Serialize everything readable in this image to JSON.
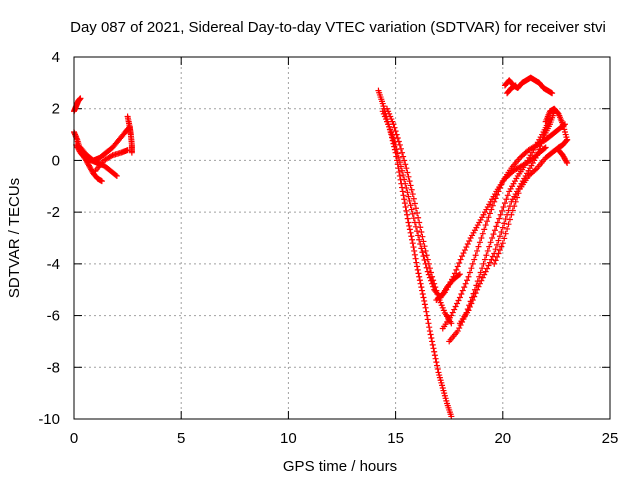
{
  "chart_data": {
    "type": "scatter",
    "title": "Day 087 of 2021, Sidereal Day-to-day VTEC variation (SDTVAR) for receiver stvi",
    "xlabel": "GPS time / hours",
    "ylabel": "SDTVAR / TECUs",
    "xlim": [
      0,
      25
    ],
    "ylim": [
      -10,
      4
    ],
    "xticks": [
      0,
      5,
      10,
      15,
      20,
      25
    ],
    "yticks": [
      -10,
      -8,
      -6,
      -4,
      -2,
      0,
      2,
      4
    ],
    "grid": true,
    "legend": "none",
    "marker": "+",
    "color": "#ff0000",
    "tracks": [
      {
        "x": [
          0.0,
          0.1,
          0.2,
          0.3
        ],
        "y": [
          1.9,
          2.1,
          2.3,
          2.4
        ]
      },
      {
        "x": [
          0.0,
          0.15,
          0.3,
          0.5,
          0.7,
          0.9,
          1.1,
          1.3
        ],
        "y": [
          1.1,
          0.8,
          0.4,
          0.1,
          -0.2,
          -0.5,
          -0.7,
          -0.8
        ]
      },
      {
        "x": [
          0.1,
          0.3,
          0.5,
          0.8,
          1.1,
          1.4,
          1.7,
          2.0
        ],
        "y": [
          0.6,
          0.3,
          0.1,
          0.0,
          -0.1,
          -0.2,
          -0.4,
          -0.6
        ]
      },
      {
        "x": [
          0.3,
          0.6,
          0.9,
          1.2,
          1.5,
          1.8,
          2.1,
          2.4,
          2.6
        ],
        "y": [
          0.5,
          0.2,
          0.0,
          0.1,
          0.3,
          0.5,
          0.8,
          1.1,
          1.3
        ]
      },
      {
        "x": [
          1.0,
          1.4,
          1.8,
          2.2,
          2.5
        ],
        "y": [
          -0.4,
          0.0,
          0.2,
          0.3,
          0.4
        ]
      },
      {
        "x": [
          2.5,
          2.6,
          2.65,
          2.7,
          2.7
        ],
        "y": [
          1.7,
          1.3,
          1.0,
          0.6,
          0.3
        ]
      },
      {
        "x": [
          14.2,
          14.4,
          14.6,
          14.8,
          15.0,
          15.2,
          15.4,
          15.6,
          15.8,
          16.0,
          16.2,
          16.4,
          16.6,
          16.8,
          17.0,
          17.2,
          17.4,
          17.6
        ],
        "y": [
          2.7,
          2.2,
          1.6,
          1.0,
          0.3,
          -0.6,
          -1.5,
          -2.4,
          -3.2,
          -4.1,
          -4.9,
          -5.7,
          -6.6,
          -7.4,
          -8.2,
          -8.8,
          -9.4,
          -9.9
        ]
      },
      {
        "x": [
          14.4,
          14.7,
          15.0,
          15.3,
          15.6,
          15.9,
          16.2,
          16.5,
          16.8,
          17.1,
          17.4,
          17.7,
          18.0
        ],
        "y": [
          1.9,
          1.3,
          0.6,
          -0.4,
          -1.4,
          -2.4,
          -3.4,
          -4.3,
          -5.0,
          -5.3,
          -4.9,
          -4.6,
          -4.4
        ]
      },
      {
        "x": [
          14.6,
          14.9,
          15.2,
          15.5,
          15.8,
          16.1,
          16.4,
          16.7,
          17.0,
          17.3,
          17.6
        ],
        "y": [
          2.0,
          1.4,
          0.6,
          -0.3,
          -1.3,
          -2.4,
          -3.5,
          -4.5,
          -5.3,
          -5.9,
          -6.3
        ]
      },
      {
        "x": [
          17.5,
          17.9,
          18.3,
          18.7,
          19.1,
          19.5,
          19.9,
          20.3,
          20.7,
          21.1,
          21.5,
          21.9,
          22.2
        ],
        "y": [
          -7.0,
          -6.6,
          -5.9,
          -5.0,
          -4.0,
          -3.0,
          -2.1,
          -1.2,
          -0.6,
          -0.1,
          0.5,
          1.1,
          1.6
        ]
      },
      {
        "x": [
          16.9,
          17.3,
          17.7,
          18.1,
          18.5,
          18.9,
          19.3,
          19.7,
          20.1,
          20.5,
          20.9,
          21.3,
          21.7,
          22.0
        ],
        "y": [
          -5.4,
          -5.1,
          -4.5,
          -3.7,
          -3.0,
          -2.4,
          -1.8,
          -1.2,
          -0.7,
          -0.4,
          -0.2,
          0.0,
          0.3,
          0.5
        ]
      },
      {
        "x": [
          17.2,
          17.6,
          18.0,
          18.4,
          18.8,
          19.2,
          19.6,
          20.0,
          20.4,
          20.8,
          21.2,
          21.6,
          22.0,
          22.3,
          22.6,
          22.9
        ],
        "y": [
          -6.5,
          -6.0,
          -5.3,
          -4.5,
          -3.5,
          -2.5,
          -1.6,
          -0.8,
          -0.3,
          0.1,
          0.4,
          0.6,
          0.8,
          1.0,
          1.2,
          1.4
        ]
      },
      {
        "x": [
          18.0,
          18.4,
          18.8,
          19.2,
          19.6,
          20.0,
          20.4,
          20.8,
          21.2,
          21.6,
          21.9,
          22.2,
          22.4
        ],
        "y": [
          -6.3,
          -5.8,
          -5.0,
          -4.3,
          -3.6,
          -2.6,
          -1.6,
          -1.0,
          -0.4,
          0.2,
          0.9,
          1.4,
          1.9
        ]
      },
      {
        "x": [
          19.6,
          20.0,
          20.4,
          20.8,
          21.2,
          21.6,
          22.0,
          22.3,
          22.6,
          22.8,
          23.0
        ],
        "y": [
          -4.0,
          -3.2,
          -2.1,
          -1.1,
          -0.6,
          -0.3,
          0.1,
          0.3,
          0.5,
          0.6,
          0.8
        ]
      },
      {
        "x": [
          22.0,
          22.2,
          22.4,
          22.6,
          22.8,
          23.0
        ],
        "y": [
          1.5,
          1.9,
          2.0,
          1.8,
          1.4,
          0.8
        ]
      },
      {
        "x": [
          20.1,
          20.3,
          20.5,
          20.7,
          20.9,
          21.1,
          21.3,
          21.5,
          21.7,
          21.9,
          22.1,
          22.3
        ],
        "y": [
          2.9,
          3.1,
          2.9,
          2.8,
          3.0,
          3.1,
          3.2,
          3.1,
          3.0,
          2.8,
          2.7,
          2.6
        ]
      },
      {
        "x": [
          20.2,
          20.4,
          20.6
        ],
        "y": [
          2.6,
          2.8,
          2.9
        ]
      },
      {
        "x": [
          22.6,
          22.8,
          23.0
        ],
        "y": [
          0.4,
          0.2,
          -0.1
        ]
      }
    ]
  }
}
